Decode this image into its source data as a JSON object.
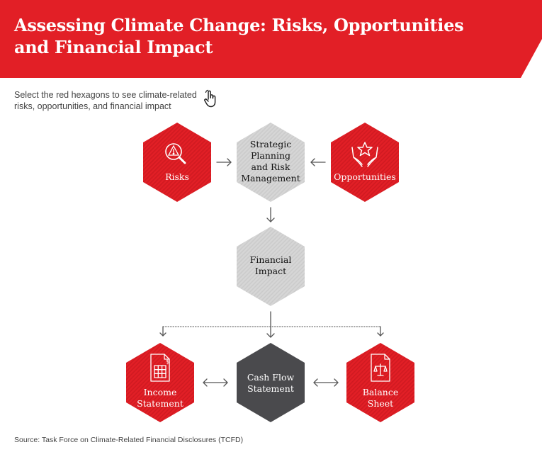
{
  "header": {
    "title": "Assessing Climate Change: Risks, Opportunities and Financial Impact"
  },
  "instructions": {
    "text": "Select the red hexagons to see climate-related risks, opportunities, and financial impact",
    "icon": "pointing-hand-icon"
  },
  "diagram": {
    "nodes": {
      "risks": {
        "label": "Risks",
        "icon": "magnifier-warning-icon",
        "color": "#e21f26"
      },
      "strategic": {
        "label": "Strategic\nPlanning\nand Risk\nManagement",
        "color": "#d4d4d4"
      },
      "opportunities": {
        "label": "Opportunities",
        "icon": "hands-star-icon",
        "color": "#e21f26"
      },
      "financial_impact": {
        "label": "Financial\nImpact",
        "color": "#d4d4d4"
      },
      "income_statement": {
        "label": "Income\nStatement",
        "icon": "document-dollar-icon",
        "color": "#e21f26"
      },
      "cash_flow": {
        "label": "Cash Flow\nStatement",
        "color": "#4a4a4d"
      },
      "balance_sheet": {
        "label": "Balance\nSheet",
        "icon": "document-scales-icon",
        "color": "#e21f26"
      }
    }
  },
  "source": "Source: Task Force on Climate-Related Financial Disclosures (TCFD)",
  "colors": {
    "brand_red": "#e21f26",
    "light_gray": "#d4d4d4",
    "dark_gray": "#4a4a4d",
    "arrow": "#555555"
  }
}
